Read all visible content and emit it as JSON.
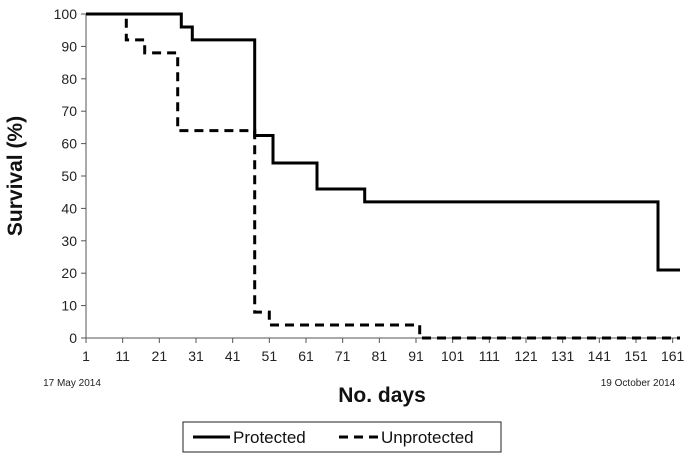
{
  "chart_data": {
    "type": "line",
    "step": true,
    "xlabel": "No. days",
    "ylabel": "Survival (%)",
    "xlim": [
      1,
      163
    ],
    "ylim": [
      0,
      100
    ],
    "x_ticks": [
      "1",
      "11",
      "21",
      "31",
      "41",
      "51",
      "61",
      "71",
      "81",
      "91",
      "101",
      "111",
      "121",
      "131",
      "141",
      "151",
      "161"
    ],
    "y_ticks": [
      "0",
      "10",
      "20",
      "30",
      "40",
      "50",
      "60",
      "70",
      "80",
      "90",
      "100"
    ],
    "grid": false,
    "legend_position": "bottom",
    "annotations": [
      {
        "text": "17 May 2014",
        "x": 1
      },
      {
        "text": "19 October 2014",
        "x": 161
      }
    ],
    "series": [
      {
        "name": "Protected",
        "style": "solid",
        "color": "#000000",
        "points": [
          [
            1,
            100
          ],
          [
            27,
            100
          ],
          [
            27,
            96
          ],
          [
            30,
            96
          ],
          [
            30,
            92
          ],
          [
            32,
            92
          ],
          [
            47,
            92
          ],
          [
            47,
            62.5
          ],
          [
            52,
            62.5
          ],
          [
            52,
            54
          ],
          [
            64,
            54
          ],
          [
            64,
            46
          ],
          [
            77,
            46
          ],
          [
            77,
            42
          ],
          [
            157,
            42
          ],
          [
            157,
            21
          ],
          [
            163,
            21
          ]
        ]
      },
      {
        "name": "Unprotected",
        "style": "dashed",
        "color": "#000000",
        "points": [
          [
            1,
            100
          ],
          [
            12,
            100
          ],
          [
            12,
            92
          ],
          [
            17,
            92
          ],
          [
            17,
            88
          ],
          [
            26,
            88
          ],
          [
            26,
            64
          ],
          [
            47,
            64
          ],
          [
            47,
            8
          ],
          [
            51,
            8
          ],
          [
            51,
            4
          ],
          [
            92,
            4
          ],
          [
            92,
            0
          ],
          [
            163,
            0
          ]
        ]
      }
    ]
  }
}
